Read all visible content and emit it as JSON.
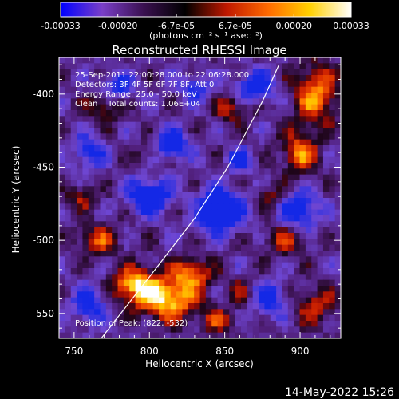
{
  "chart_data": {
    "type": "heatmap",
    "title": "Reconstructed RHESSI Image",
    "xlabel": "Heliocentric X (arcsec)",
    "ylabel": "Heliocentric Y (arcsec)",
    "xlim": [
      740,
      927
    ],
    "ylim": [
      -567,
      -375
    ],
    "x_ticks": [
      "750",
      "800",
      "850",
      "900"
    ],
    "x_tick_values": [
      750,
      800,
      850,
      900
    ],
    "y_ticks": [
      "-400",
      "-450",
      "-500",
      "-550"
    ],
    "y_tick_values": [
      -400,
      -450,
      -500,
      -550
    ],
    "colorbar": {
      "min": -0.00033,
      "max": 0.00033,
      "tick_labels": [
        "-0.00033",
        "-0.00020",
        "-6.7e-05",
        "6.7e-05",
        "0.00020",
        "0.00033"
      ],
      "tick_values": [
        -0.00033,
        -0.0002,
        -6.7e-05,
        6.7e-05,
        0.0002,
        0.00033
      ],
      "unit_text": "(photons cm⁻² s⁻¹ asec⁻²)",
      "colors": [
        "#0000ff",
        "#7a3fc8",
        "#3a1050",
        "#000000",
        "#c01800",
        "#ff6a00",
        "#ffd000",
        "#ffffff"
      ]
    },
    "annotations": [
      "25-Sep-2011 22:00:28.000 to 22:06:28.000",
      "Detectors: 3F 4F 5F 6F 7F 8F, Att 0",
      "Energy Range: 25.0 - 50.0 keV",
      "Clean    Total counts: 1.06E+04"
    ],
    "peak_label": "Position of Peak: (822, -532)",
    "limb_curve": [
      [
        768,
        -567
      ],
      [
        800,
        -525
      ],
      [
        830,
        -485
      ],
      [
        852,
        -450
      ],
      [
        875,
        -405
      ],
      [
        886,
        -380
      ]
    ],
    "bright_sources": [
      {
        "x": 812,
        "y": -540,
        "level": 0.95,
        "sx": 14,
        "sy": 10
      },
      {
        "x": 790,
        "y": -530,
        "level": 0.85,
        "sx": 10,
        "sy": 8
      },
      {
        "x": 828,
        "y": -522,
        "level": 0.7,
        "sx": 9,
        "sy": 7
      },
      {
        "x": 910,
        "y": -400,
        "level": 0.75,
        "sx": 10,
        "sy": 14
      },
      {
        "x": 900,
        "y": -440,
        "level": 0.7,
        "sx": 8,
        "sy": 10
      },
      {
        "x": 855,
        "y": -410,
        "level": 0.5,
        "sx": 8,
        "sy": 6
      },
      {
        "x": 765,
        "y": -500,
        "level": 0.55,
        "sx": 10,
        "sy": 7
      },
      {
        "x": 755,
        "y": -470,
        "level": 0.45,
        "sx": 7,
        "sy": 6
      },
      {
        "x": 890,
        "y": -500,
        "level": 0.45,
        "sx": 10,
        "sy": 8
      },
      {
        "x": 910,
        "y": -545,
        "level": 0.5,
        "sx": 9,
        "sy": 9
      },
      {
        "x": 770,
        "y": -410,
        "level": 0.45,
        "sx": 8,
        "sy": 7
      },
      {
        "x": 845,
        "y": -555,
        "level": 0.45,
        "sx": 8,
        "sy": 6
      },
      {
        "x": 860,
        "y": -535,
        "level": 0.35,
        "sx": 6,
        "sy": 6
      },
      {
        "x": 880,
        "y": -470,
        "level": 0.35,
        "sx": 6,
        "sy": 6
      },
      {
        "x": 800,
        "y": -440,
        "level": 0.3,
        "sx": 6,
        "sy": 5
      },
      {
        "x": 830,
        "y": -480,
        "level": 0.3,
        "sx": 7,
        "sy": 5
      }
    ],
    "dark_sources": [
      {
        "x": 845,
        "y": -480,
        "level": -0.9,
        "sx": 12,
        "sy": 10
      },
      {
        "x": 800,
        "y": -470,
        "level": -0.9,
        "sx": 9,
        "sy": 8
      },
      {
        "x": 815,
        "y": -435,
        "level": -0.75,
        "sx": 8,
        "sy": 7
      },
      {
        "x": 870,
        "y": -395,
        "level": -0.7,
        "sx": 9,
        "sy": 7
      },
      {
        "x": 900,
        "y": -480,
        "level": -0.7,
        "sx": 9,
        "sy": 9
      },
      {
        "x": 880,
        "y": -540,
        "level": -0.6,
        "sx": 8,
        "sy": 8
      },
      {
        "x": 760,
        "y": -440,
        "level": -0.6,
        "sx": 7,
        "sy": 8
      },
      {
        "x": 760,
        "y": -545,
        "level": -0.6,
        "sx": 8,
        "sy": 9
      },
      {
        "x": 780,
        "y": -395,
        "level": -0.55,
        "sx": 8,
        "sy": 6
      },
      {
        "x": 860,
        "y": -445,
        "level": -0.55,
        "sx": 6,
        "sy": 6
      },
      {
        "x": 830,
        "y": -395,
        "level": -0.55,
        "sx": 7,
        "sy": 6
      }
    ]
  },
  "timestamp": "14-May-2022 15:26"
}
